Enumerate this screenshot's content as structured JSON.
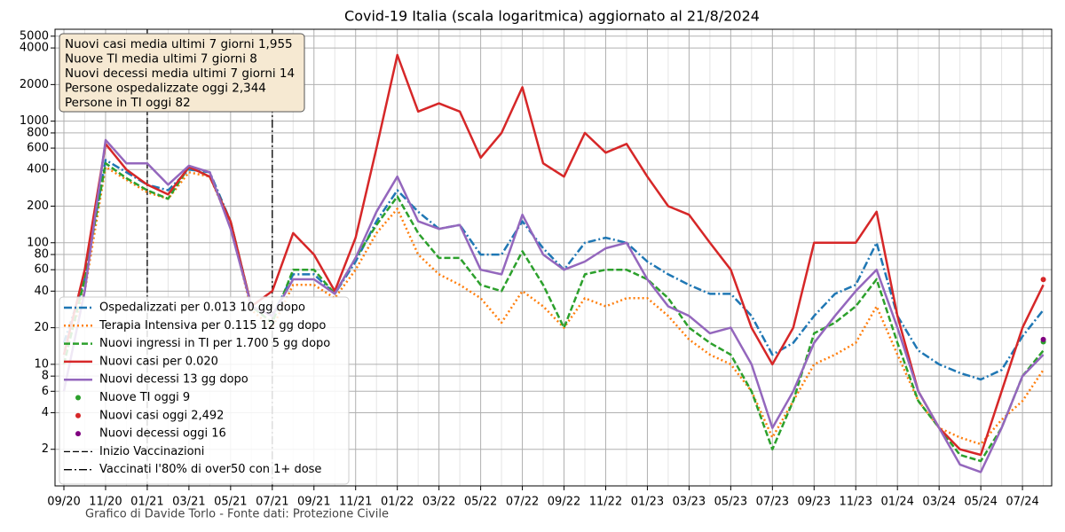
{
  "chart_data": {
    "type": "line",
    "title": "Covid-19 Italia (scala logaritmica) aggiornato al 21/8/2024",
    "log_scale": true,
    "grid": true,
    "legend": "lower left",
    "x": [
      "09/20",
      "10/20",
      "11/20",
      "12/20",
      "01/21",
      "02/21",
      "03/21",
      "04/21",
      "05/21",
      "06/21",
      "07/21",
      "08/21",
      "09/21",
      "10/21",
      "11/21",
      "12/21",
      "01/22",
      "02/22",
      "03/22",
      "04/22",
      "05/22",
      "06/22",
      "07/22",
      "08/22",
      "09/22",
      "10/22",
      "11/22",
      "12/22",
      "01/23",
      "02/23",
      "03/23",
      "04/23",
      "05/23",
      "06/23",
      "07/23",
      "08/23",
      "09/23",
      "10/23",
      "11/23",
      "12/23",
      "01/24",
      "02/24",
      "03/24",
      "04/24",
      "05/24",
      "06/24",
      "07/24",
      "08/24"
    ],
    "xticks": [
      "09/20",
      "11/20",
      "01/21",
      "03/21",
      "05/21",
      "07/21",
      "09/21",
      "11/21",
      "01/22",
      "03/22",
      "05/22",
      "07/22",
      "09/22",
      "11/22",
      "01/23",
      "03/23",
      "05/23",
      "07/23",
      "09/23",
      "11/23",
      "01/24",
      "03/24",
      "05/24",
      "07/24"
    ],
    "ylim": [
      1,
      5700
    ],
    "yticks": [
      2,
      4,
      6,
      8,
      10,
      20,
      40,
      60,
      80,
      100,
      200,
      400,
      600,
      800,
      1000,
      2000,
      4000,
      5000
    ],
    "series": [
      {
        "name": "Ospedalizzati per 0.013 10 gg dopo",
        "color": "#1f77b4",
        "style": "dashdot",
        "values": [
          15,
          50,
          480,
          380,
          300,
          270,
          400,
          380,
          150,
          30,
          25,
          55,
          55,
          38,
          70,
          150,
          270,
          180,
          130,
          140,
          80,
          80,
          150,
          90,
          60,
          100,
          110,
          100,
          70,
          55,
          45,
          38,
          38,
          25,
          12,
          15,
          25,
          38,
          45,
          100,
          25,
          13,
          10,
          8.5,
          7.5,
          9,
          17,
          28
        ]
      },
      {
        "name": "Terapia Intensiva per 0.115 12 gg dopo",
        "color": "#ff7f0e",
        "style": "dotted",
        "values": [
          12,
          40,
          420,
          330,
          260,
          230,
          380,
          350,
          140,
          28,
          20,
          45,
          45,
          35,
          60,
          120,
          190,
          80,
          55,
          45,
          35,
          22,
          40,
          30,
          20,
          35,
          30,
          35,
          35,
          25,
          16,
          12,
          10,
          6,
          2.5,
          5,
          10,
          12,
          15,
          30,
          12,
          5,
          3,
          2.5,
          2.2,
          3.5,
          5,
          9
        ]
      },
      {
        "name": "Nuovi ingressi in TI per 1.700 5 gg dopo",
        "color": "#2ca02c",
        "style": "dashed",
        "values": [
          10,
          50,
          450,
          340,
          270,
          230,
          420,
          350,
          150,
          30,
          22,
          60,
          60,
          38,
          75,
          140,
          240,
          120,
          75,
          75,
          45,
          40,
          85,
          45,
          20,
          55,
          60,
          60,
          50,
          35,
          20,
          15,
          12,
          6,
          2,
          5,
          18,
          22,
          30,
          50,
          15,
          5,
          3,
          1.8,
          1.6,
          3,
          8,
          13
        ]
      },
      {
        "name": "Nuovi casi per 0.020",
        "color": "#d62728",
        "style": "solid",
        "values": [
          12,
          60,
          650,
          400,
          300,
          250,
          420,
          350,
          150,
          30,
          40,
          120,
          80,
          40,
          110,
          600,
          3500,
          1200,
          1400,
          1200,
          500,
          800,
          1900,
          450,
          350,
          800,
          550,
          650,
          350,
          200,
          170,
          100,
          60,
          20,
          10,
          20,
          100,
          100,
          100,
          180,
          25,
          6,
          3,
          2,
          1.8,
          6,
          20,
          45
        ]
      },
      {
        "name": "Nuovi decessi 13 gg dopo",
        "color": "#9467bd",
        "style": "solid",
        "values": [
          6,
          40,
          700,
          450,
          450,
          300,
          430,
          380,
          130,
          30,
          25,
          50,
          50,
          38,
          75,
          180,
          350,
          150,
          130,
          140,
          60,
          55,
          170,
          80,
          60,
          70,
          90,
          100,
          50,
          30,
          25,
          18,
          20,
          10,
          3,
          6,
          15,
          25,
          40,
          60,
          20,
          6,
          3,
          1.5,
          1.3,
          3,
          8,
          12
        ]
      }
    ],
    "points": [
      {
        "name": "Nuove TI oggi 9",
        "color": "#2ca02c",
        "x": "08/24",
        "y": 15.3
      },
      {
        "name": "Nuovi casi oggi 2,492",
        "color": "#d62728",
        "x": "08/24",
        "y": 49.8
      },
      {
        "name": "Nuovi decessi oggi 16",
        "color": "#800080",
        "x": "08/24",
        "y": 16
      }
    ],
    "vlines": [
      {
        "name": "Inizio Vaccinazioni",
        "x": "01/21",
        "style": "dashed"
      },
      {
        "name": "Vaccinati l'80% di over50 con 1+ dose",
        "x": "07/21",
        "style": "dashdot"
      }
    ],
    "info_box": [
      "Nuovi casi media ultimi 7 giorni 1,955",
      "Nuove TI media ultimi 7 giorni 8",
      "Nuovi decessi media ultimi 7 giorni 14",
      "Persone ospedalizzate oggi 2,344",
      "Persone in TI oggi 82"
    ],
    "footer": "Grafico di Davide Torlo - Fonte dati: Protezione Civile"
  }
}
